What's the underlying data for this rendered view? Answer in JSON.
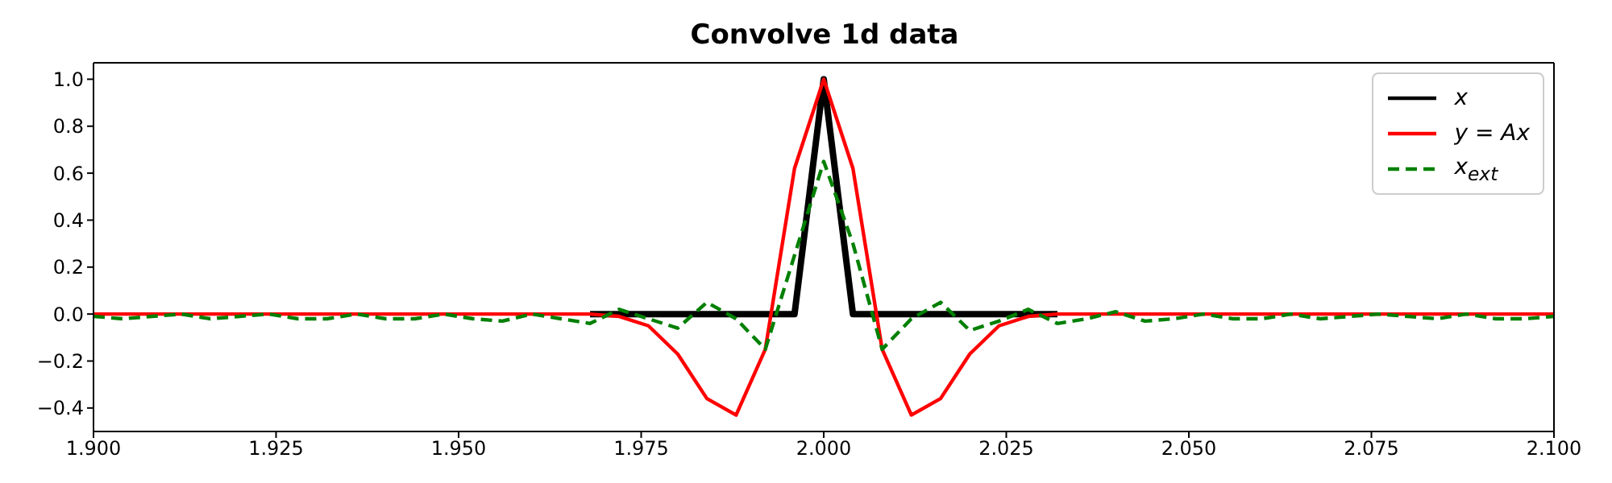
{
  "chart_data": {
    "type": "line",
    "title": "Convolve 1d data",
    "legend": "top right",
    "x": [
      1.9,
      1.904,
      1.908,
      1.912,
      1.916,
      1.92,
      1.924,
      1.928,
      1.932,
      1.936,
      1.94,
      1.944,
      1.948,
      1.952,
      1.956,
      1.96,
      1.964,
      1.968,
      1.972,
      1.976,
      1.98,
      1.984,
      1.988,
      1.992,
      1.996,
      2.0,
      2.004,
      2.008,
      2.012,
      2.016,
      2.02,
      2.024,
      2.028,
      2.032,
      2.036,
      2.04,
      2.044,
      2.048,
      2.052,
      2.056,
      2.06,
      2.064,
      2.068,
      2.072,
      2.076,
      2.08,
      2.084,
      2.088,
      2.092,
      2.096,
      2.1
    ],
    "series": [
      {
        "name": "x",
        "color": "#000000",
        "line_style": "solid",
        "values": [
          null,
          null,
          null,
          null,
          null,
          null,
          null,
          null,
          null,
          null,
          null,
          null,
          null,
          null,
          null,
          null,
          null,
          0,
          0,
          0,
          0,
          0,
          0,
          0,
          0,
          1,
          0,
          0,
          0,
          0,
          0,
          0,
          0,
          0,
          null,
          null,
          null,
          null,
          null,
          null,
          null,
          null,
          null,
          null,
          null,
          null,
          null,
          null,
          null,
          null,
          null
        ]
      },
      {
        "name": "y = Ax",
        "color": "#ff0000",
        "line_style": "solid",
        "values": [
          0,
          0,
          0,
          0,
          0,
          0,
          0,
          0,
          0,
          0,
          0,
          0,
          0,
          0,
          0,
          0,
          0,
          0,
          -0.01,
          -0.05,
          -0.17,
          -0.36,
          -0.43,
          -0.15,
          0.62,
          1,
          0.62,
          -0.15,
          -0.43,
          -0.36,
          -0.17,
          -0.05,
          -0.01,
          0,
          0,
          0,
          0,
          0,
          0,
          0,
          0,
          0,
          0,
          0,
          0,
          0,
          0,
          0,
          0,
          0,
          0
        ]
      },
      {
        "name": "x$_{ext}$",
        "color": "#008000",
        "line_style": "dashed",
        "values": [
          -0.01,
          -0.02,
          -0.01,
          0,
          -0.02,
          -0.01,
          0,
          -0.02,
          -0.02,
          0,
          -0.02,
          -0.02,
          0,
          -0.02,
          -0.03,
          0,
          -0.02,
          -0.04,
          0.02,
          -0.02,
          -0.06,
          0.05,
          -0.02,
          -0.15,
          0.25,
          0.65,
          0.3,
          -0.15,
          -0.02,
          0.05,
          -0.07,
          -0.03,
          0.02,
          -0.04,
          -0.02,
          0.01,
          -0.03,
          -0.02,
          0,
          -0.02,
          -0.02,
          0,
          -0.02,
          -0.01,
          0,
          -0.01,
          -0.02,
          0,
          -0.02,
          -0.02,
          -0.01
        ]
      }
    ],
    "xlim": [
      1.9,
      2.1
    ],
    "xticks": [
      {
        "value": 1.9,
        "label": "1.900"
      },
      {
        "value": 1.925,
        "label": "1.925"
      },
      {
        "value": 1.95,
        "label": "1.950"
      },
      {
        "value": 1.975,
        "label": "1.975"
      },
      {
        "value": 2.0,
        "label": "2.000"
      },
      {
        "value": 2.025,
        "label": "2.025"
      },
      {
        "value": 2.05,
        "label": "2.050"
      },
      {
        "value": 2.075,
        "label": "2.075"
      },
      {
        "value": 2.1,
        "label": "2.100"
      }
    ],
    "ylim": [
      -0.5,
      1.07
    ],
    "yticks": [
      {
        "value": -0.4,
        "label": "−0.4"
      },
      {
        "value": -0.2,
        "label": "−0.2"
      },
      {
        "value": 0,
        "label": "0.0"
      },
      {
        "value": 0.2,
        "label": "0.2"
      },
      {
        "value": 0.4,
        "label": "0.4"
      },
      {
        "value": 0.6,
        "label": "0.6"
      },
      {
        "value": 0.8,
        "label": "0.8"
      },
      {
        "value": 1.0,
        "label": "1.0"
      }
    ]
  }
}
